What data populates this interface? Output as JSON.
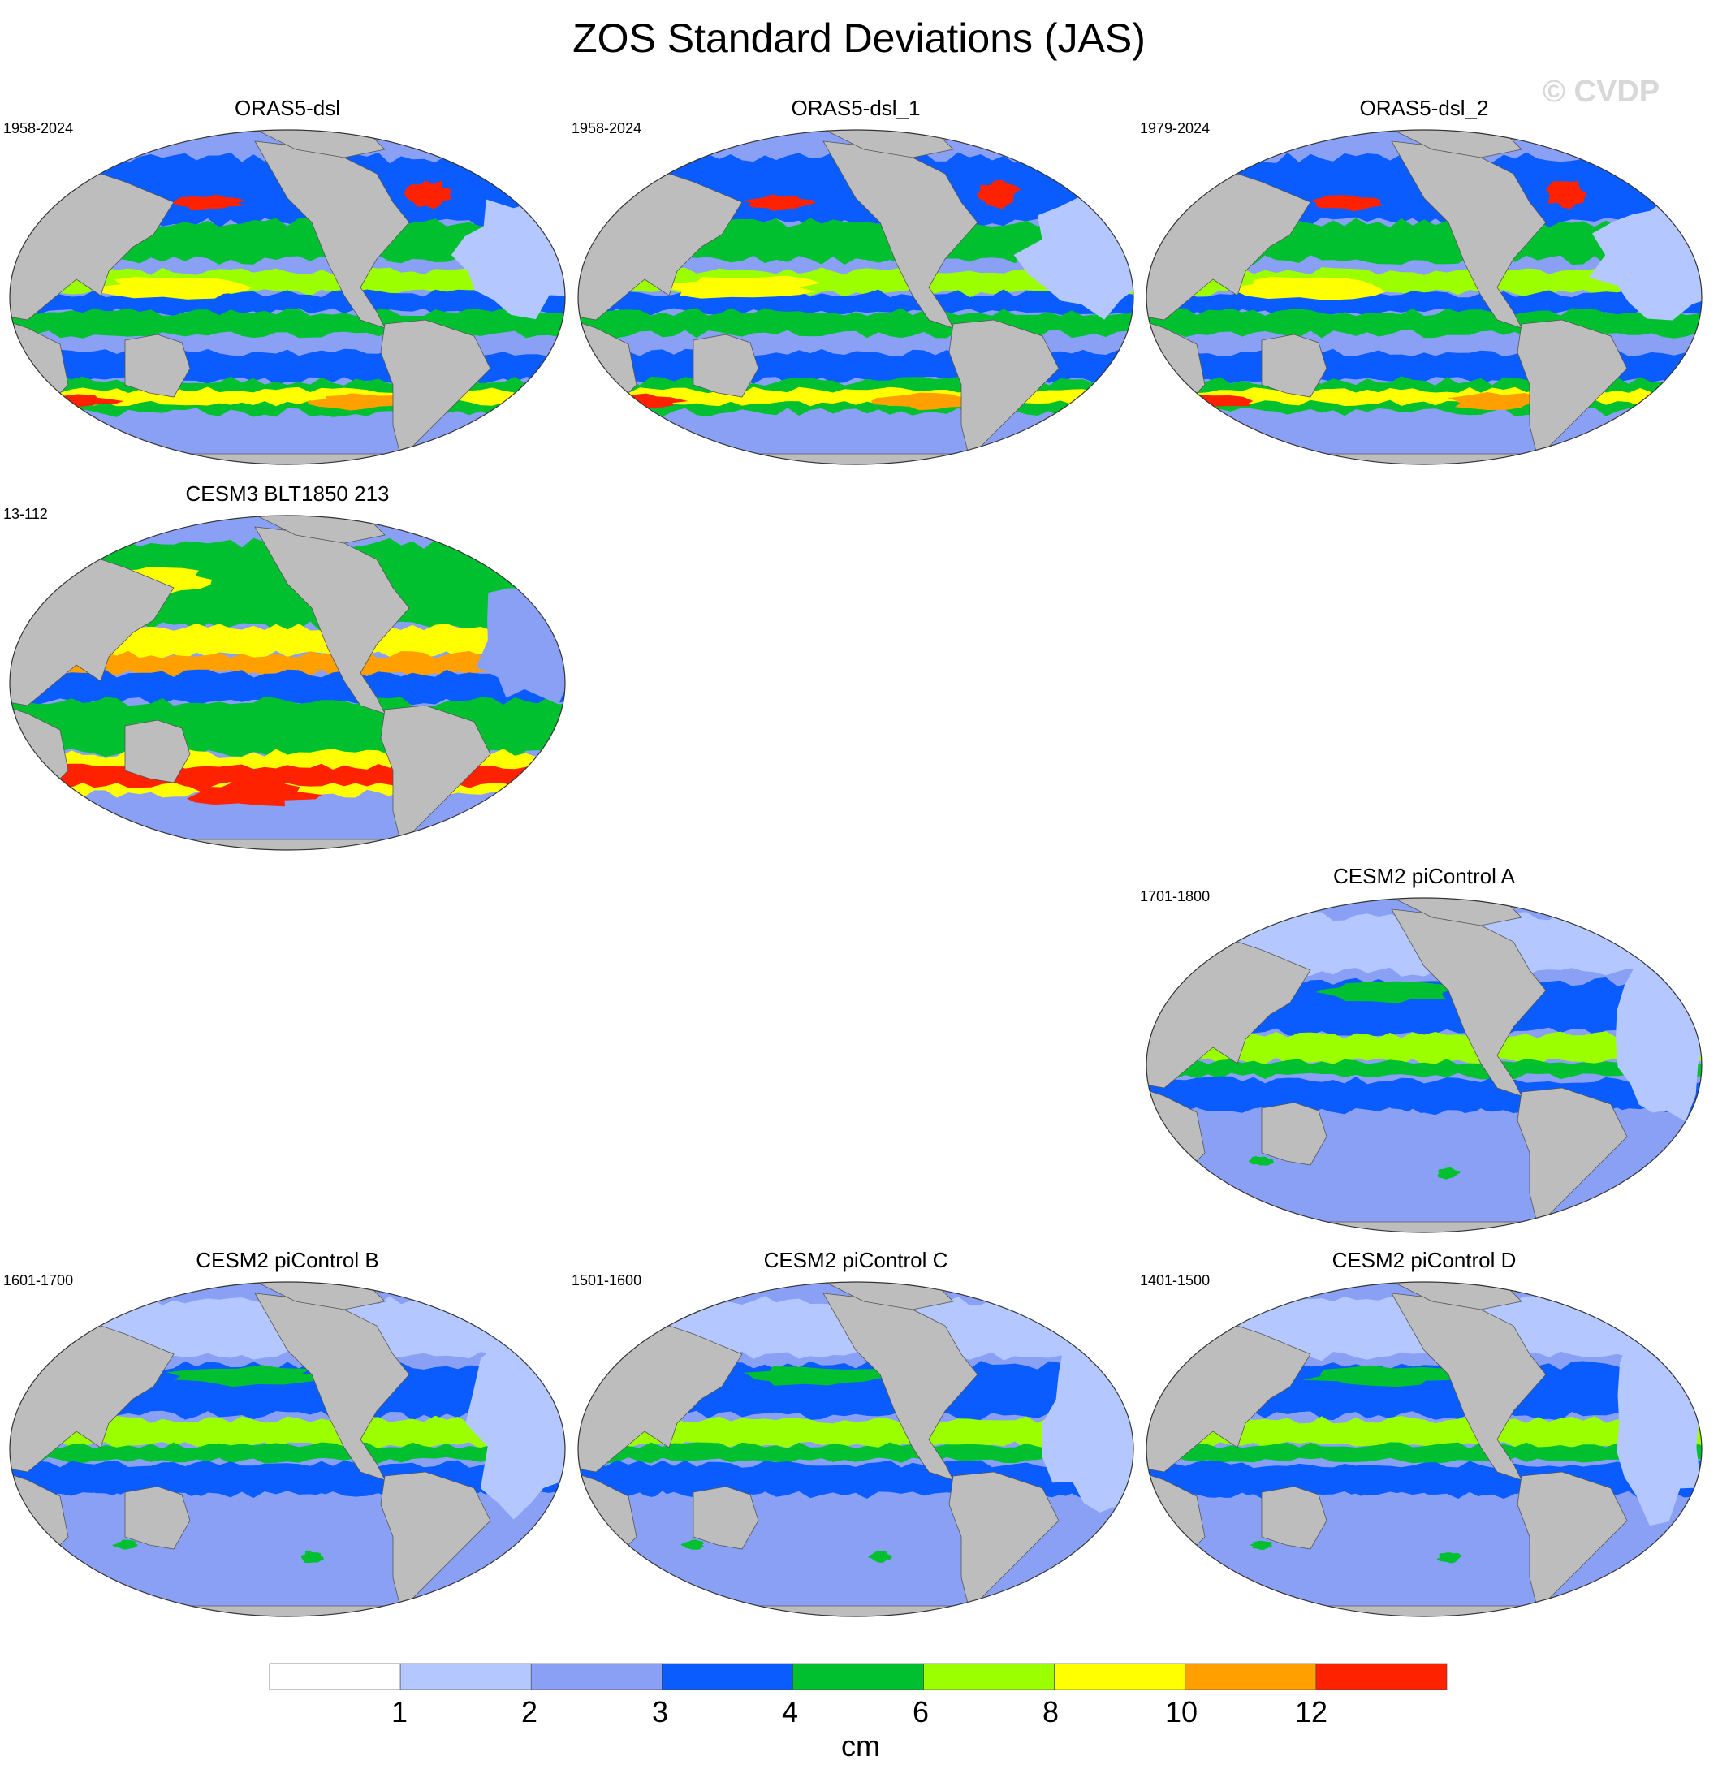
{
  "figure": {
    "title": "ZOS Standard Deviations (JAS)",
    "watermark": "© CVDP",
    "land_color": "#bdbdbd",
    "projection": "Robinson-like global oval"
  },
  "panels": [
    {
      "title": "ORAS5-dsl",
      "period": "1958-2024",
      "pattern": "obs"
    },
    {
      "title": "ORAS5-dsl_1",
      "period": "1958-2024",
      "pattern": "obs"
    },
    {
      "title": "ORAS5-dsl_2",
      "period": "1979-2024",
      "pattern": "obs"
    },
    {
      "title": "CESM3 BLT1850 213",
      "period": "13-112",
      "pattern": "cesm3"
    },
    {
      "title": "CESM2 piControl A",
      "period": "1701-1800",
      "pattern": "cesm2"
    },
    {
      "title": "CESM2 piControl B",
      "period": "1601-1700",
      "pattern": "cesm2"
    },
    {
      "title": "CESM2 piControl C",
      "period": "1501-1600",
      "pattern": "cesm2"
    },
    {
      "title": "CESM2 piControl D",
      "period": "1401-1500",
      "pattern": "cesm2"
    }
  ],
  "colorbar": {
    "units": "cm",
    "tick_labels": [
      "1",
      "2",
      "3",
      "4",
      "6",
      "8",
      "10",
      "12"
    ],
    "colors": [
      "#ffffff",
      "#b4c8ff",
      "#8aa0f5",
      "#0a5cff",
      "#00c030",
      "#9bff00",
      "#ffff00",
      "#ffa000",
      "#ff2200"
    ]
  }
}
